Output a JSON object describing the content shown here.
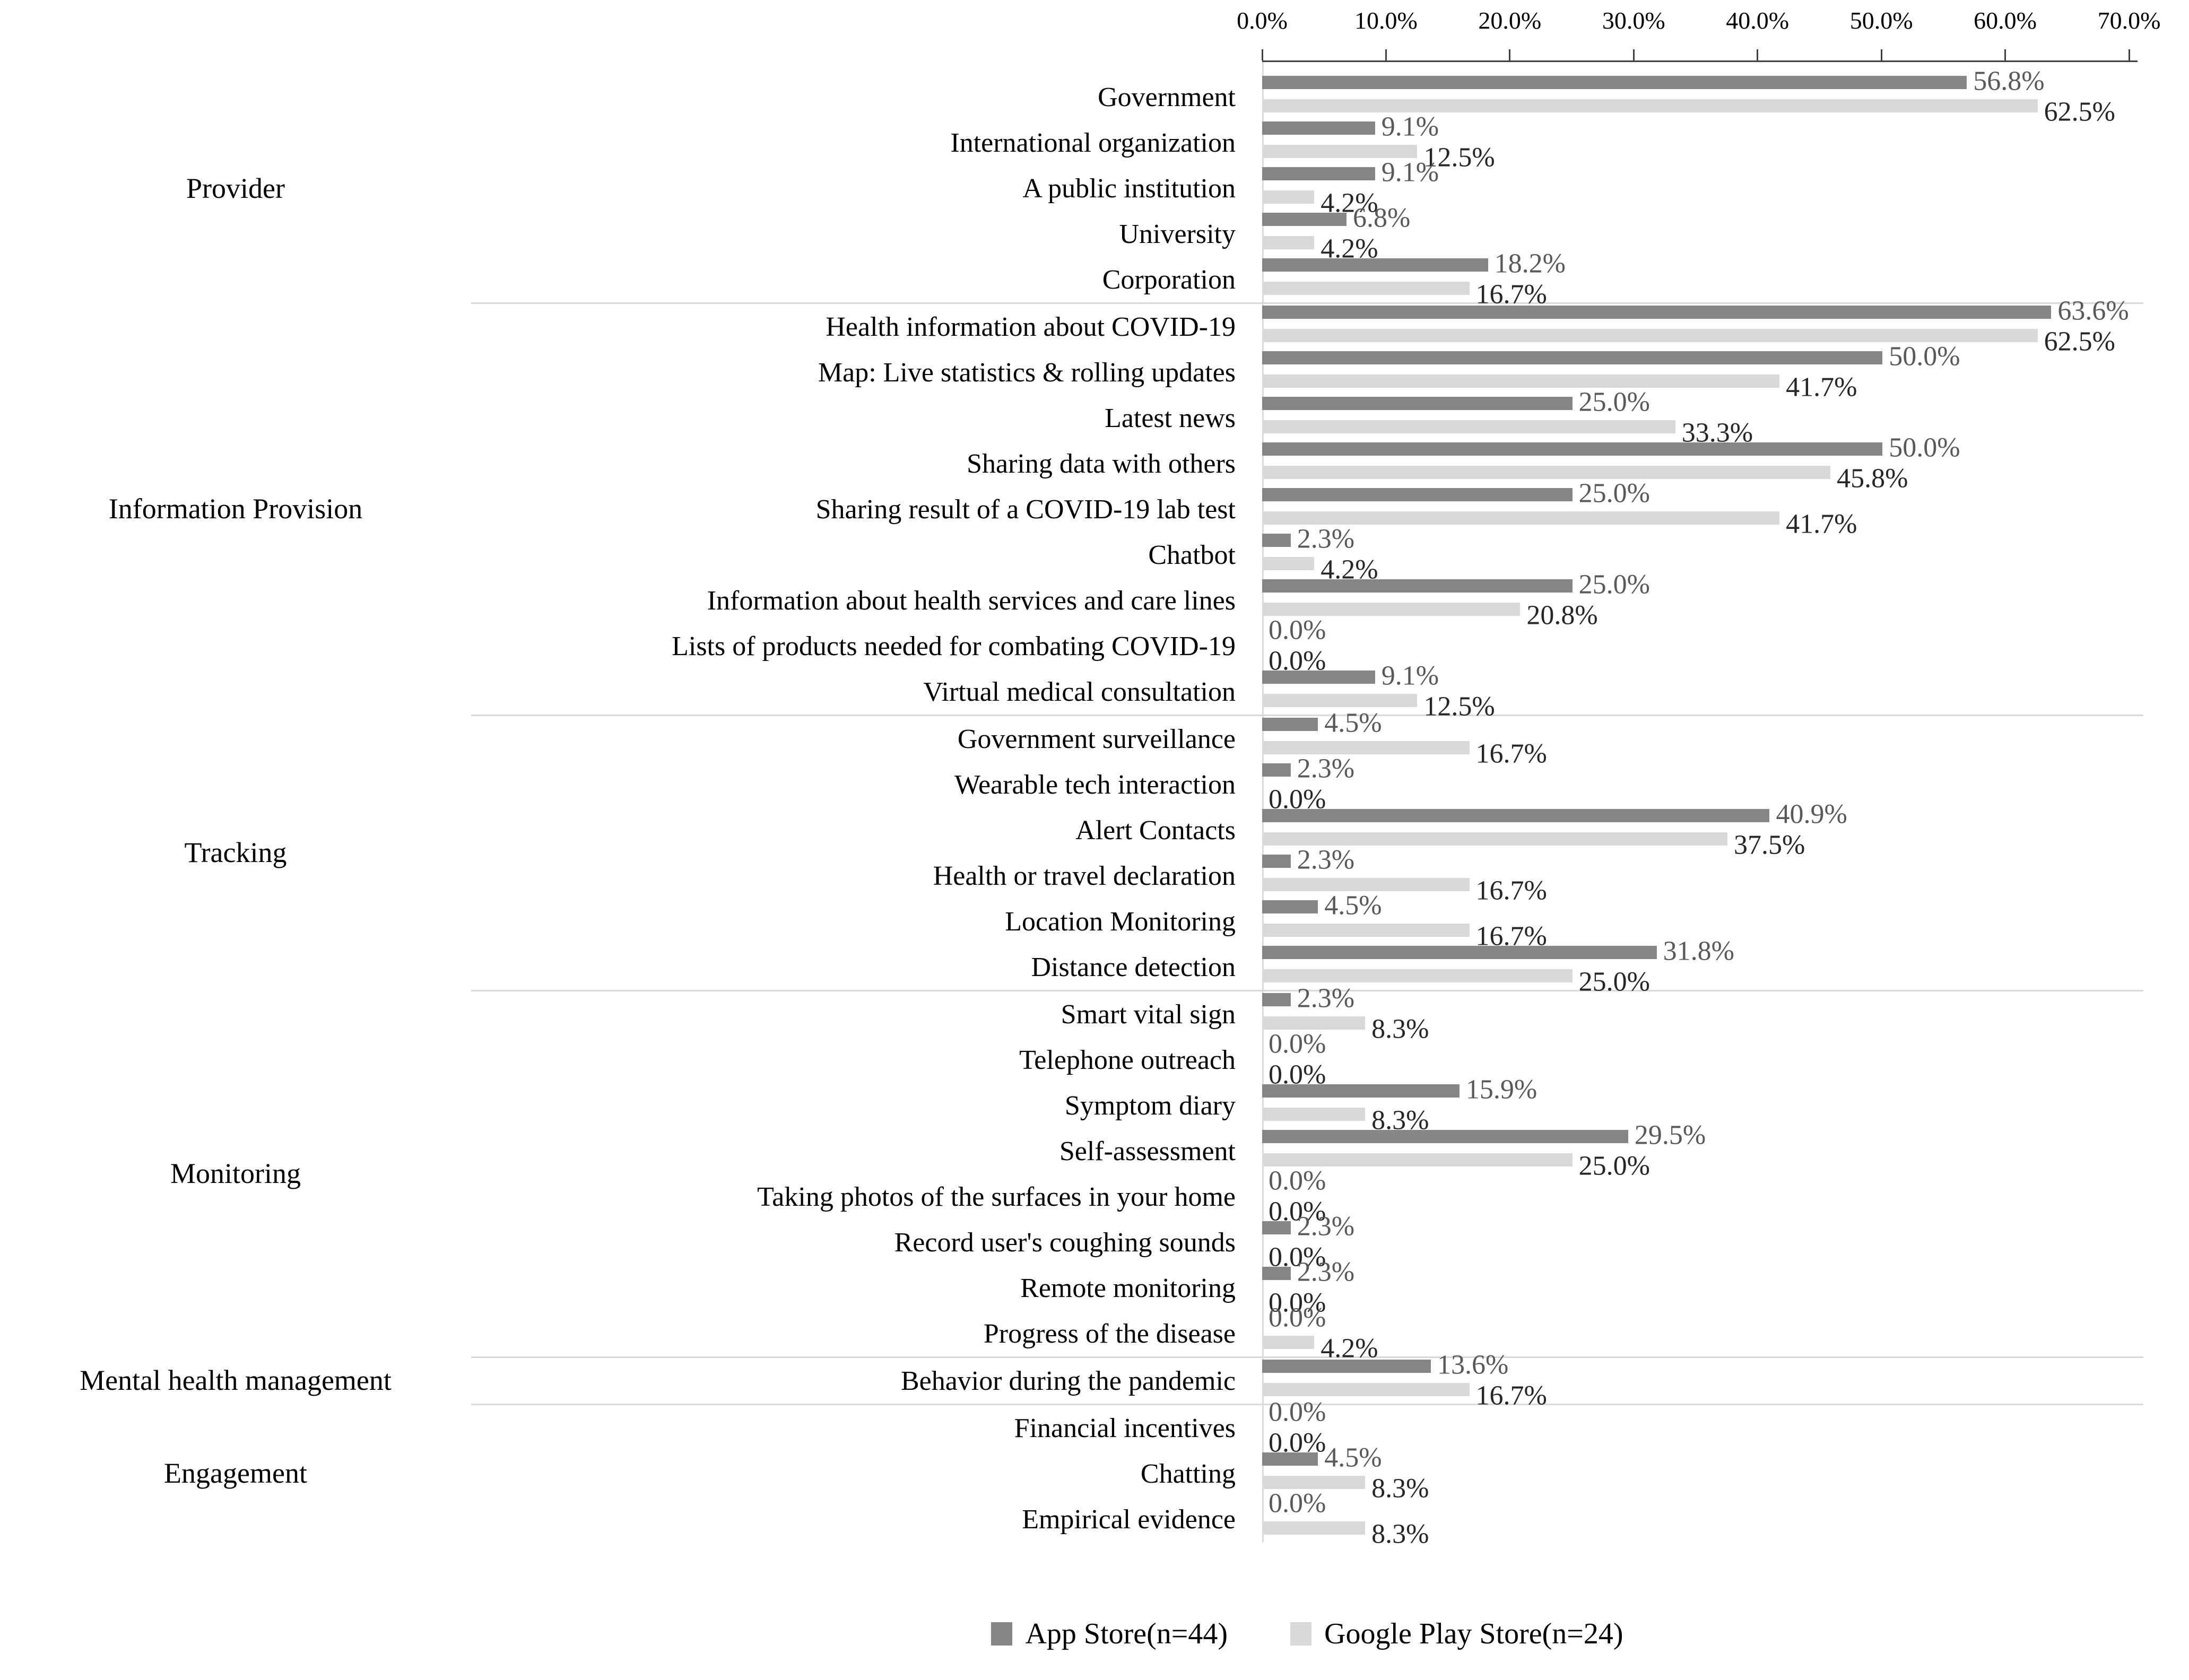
{
  "chart_data": {
    "type": "bar",
    "orientation": "horizontal",
    "title": "",
    "grid": false,
    "legend_position": "bottom",
    "value_axis": {
      "min": 0,
      "max": 70,
      "unit": "%",
      "tick_labels": [
        "0.0%",
        "10.0%",
        "20.0%",
        "30.0%",
        "40.0%",
        "50.0%",
        "60.0%",
        "70.0%"
      ]
    },
    "series": [
      {
        "name": "App Store(n=44)",
        "color": "#868686",
        "label_color": "#595959"
      },
      {
        "name": "Google Play Store(n=24)",
        "color": "#d9d9d9",
        "label_color": "#262626"
      }
    ],
    "sections": [
      {
        "group": "Provider",
        "items": [
          {
            "label": "Government",
            "app": 56.8,
            "gps": 62.5
          },
          {
            "label": "International organization",
            "app": 9.1,
            "gps": 12.5
          },
          {
            "label": "A public institution",
            "app": 9.1,
            "gps": 4.2
          },
          {
            "label": "University",
            "app": 6.8,
            "gps": 4.2
          },
          {
            "label": "Corporation",
            "app": 18.2,
            "gps": 16.7
          }
        ]
      },
      {
        "group": "Information Provision",
        "items": [
          {
            "label": "Health information about COVID-19",
            "app": 63.6,
            "gps": 62.5
          },
          {
            "label": "Map: Live statistics & rolling updates",
            "app": 50.0,
            "gps": 41.7
          },
          {
            "label": "Latest news",
            "app": 25.0,
            "gps": 33.3
          },
          {
            "label": "Sharing data with others",
            "app": 50.0,
            "gps": 45.8
          },
          {
            "label": "Sharing result of a COVID-19 lab test",
            "app": 25.0,
            "gps": 41.7
          },
          {
            "label": "Chatbot",
            "app": 2.3,
            "gps": 4.2
          },
          {
            "label": "Information about health services and care lines",
            "app": 25.0,
            "gps": 20.8
          },
          {
            "label": "Lists of products needed for combating COVID-19",
            "app": 0.0,
            "gps": 0.0
          },
          {
            "label": "Virtual medical consultation",
            "app": 9.1,
            "gps": 12.5
          }
        ]
      },
      {
        "group": "Tracking",
        "items": [
          {
            "label": "Government surveillance",
            "app": 4.5,
            "gps": 16.7
          },
          {
            "label": "Wearable tech interaction",
            "app": 2.3,
            "gps": 0.0
          },
          {
            "label": "Alert Contacts",
            "app": 40.9,
            "gps": 37.5
          },
          {
            "label": "Health or travel declaration",
            "app": 2.3,
            "gps": 16.7
          },
          {
            "label": "Location Monitoring",
            "app": 4.5,
            "gps": 16.7
          },
          {
            "label": "Distance detection",
            "app": 31.8,
            "gps": 25.0
          }
        ]
      },
      {
        "group": "Monitoring",
        "items": [
          {
            "label": "Smart vital sign",
            "app": 2.3,
            "gps": 8.3
          },
          {
            "label": "Telephone outreach",
            "app": 0.0,
            "gps": 0.0
          },
          {
            "label": "Symptom diary",
            "app": 15.9,
            "gps": 8.3
          },
          {
            "label": "Self-assessment",
            "app": 29.5,
            "gps": 25.0
          },
          {
            "label": "Taking photos of the surfaces in your home",
            "app": 0.0,
            "gps": 0.0
          },
          {
            "label": "Record user's coughing sounds",
            "app": 2.3,
            "gps": 0.0
          },
          {
            "label": "Remote monitoring",
            "app": 2.3,
            "gps": 0.0
          },
          {
            "label": "Progress of the disease",
            "app": 0.0,
            "gps": 4.2
          }
        ]
      },
      {
        "group": "Mental health management",
        "items": [
          {
            "label": "Behavior during the pandemic",
            "app": 13.6,
            "gps": 16.7
          }
        ]
      },
      {
        "group": "Engagement",
        "items": [
          {
            "label": "Financial incentives",
            "app": 0.0,
            "gps": 0.0
          },
          {
            "label": "Chatting",
            "app": 4.5,
            "gps": 8.3
          },
          {
            "label": "Empirical evidence",
            "app": 0.0,
            "gps": 8.3
          }
        ]
      }
    ],
    "colors": {
      "axis_line": "#404040",
      "separator": "#d9d9d9",
      "zero_axis_line": "#dcdcdc"
    }
  }
}
